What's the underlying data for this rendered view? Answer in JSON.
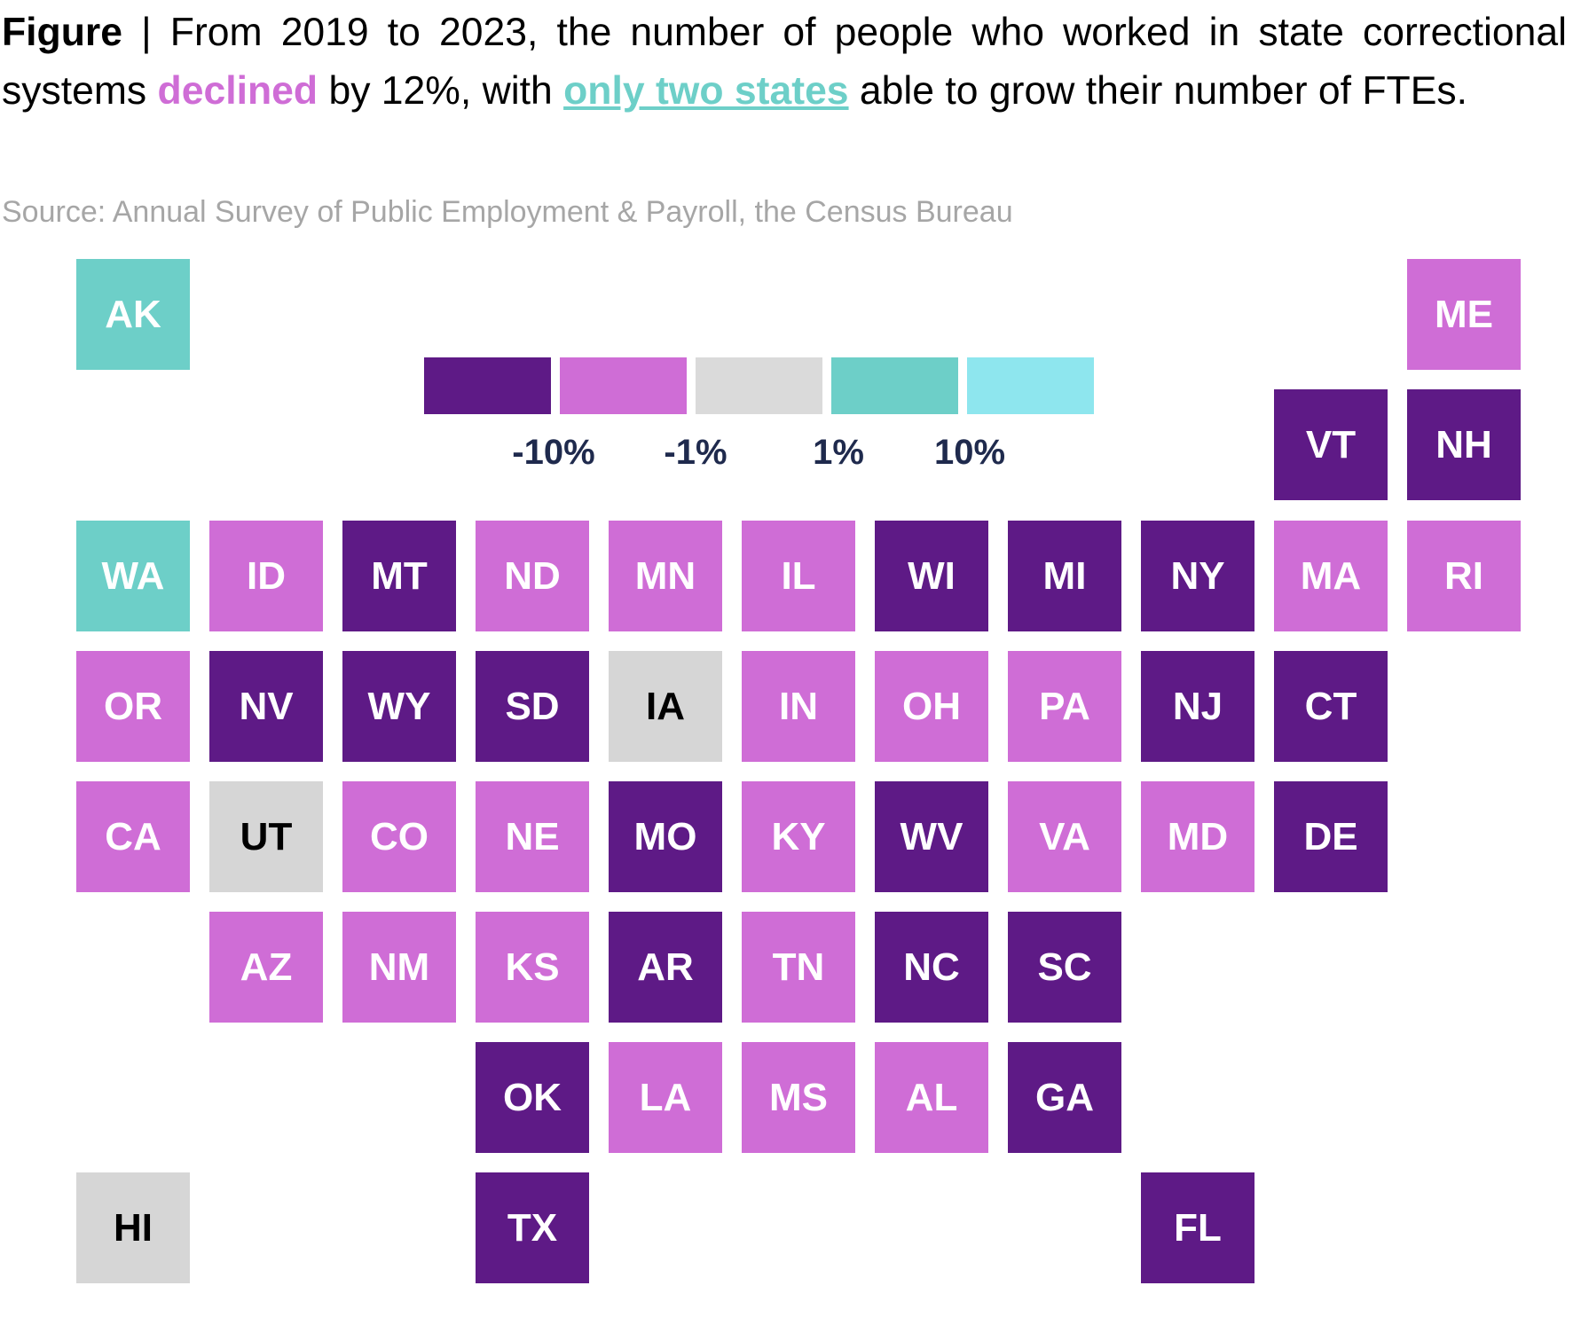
{
  "caption": {
    "label": "Figure",
    "separator": " | ",
    "part1": "From 2019 to 2023, the number of people who worked in state correctional systems ",
    "declined": "declined",
    "part2": " by 12%, with ",
    "grow": "only two states",
    "part3": " able to grow their number of FTEs.",
    "declined_color": "#cf6dd6",
    "grow_color": "#6dcfc8"
  },
  "source": "Source: Annual Survey of Public Employment & Payroll, the Census Bureau",
  "legend": {
    "bins": [
      {
        "color": "#5e1a86"
      },
      {
        "color": "#cf6dd6"
      },
      {
        "color": "#dadada"
      },
      {
        "color": "#6dcfc8"
      },
      {
        "color": "#8ee6ee"
      }
    ],
    "breaks": [
      "-10%",
      "-1%",
      "1%",
      "10%"
    ]
  },
  "colors": {
    "bin0": "#5e1a86",
    "bin1": "#cf6dd6",
    "bin2": "#d6d6d6",
    "bin3": "#6dcfc8",
    "light_text": "#ffffff",
    "dark_text": "#000000"
  },
  "map": {
    "type": "tile-grid-choropleth",
    "states": [
      {
        "abbr": "AK",
        "bin": 3,
        "row": 0,
        "col": 0
      },
      {
        "abbr": "ME",
        "bin": 1,
        "row": 0,
        "col": 10
      },
      {
        "abbr": "VT",
        "bin": 0,
        "row": 1,
        "col": 9
      },
      {
        "abbr": "NH",
        "bin": 0,
        "row": 1,
        "col": 10
      },
      {
        "abbr": "WA",
        "bin": 3,
        "row": 2,
        "col": 0
      },
      {
        "abbr": "ID",
        "bin": 1,
        "row": 2,
        "col": 1
      },
      {
        "abbr": "MT",
        "bin": 0,
        "row": 2,
        "col": 2
      },
      {
        "abbr": "ND",
        "bin": 1,
        "row": 2,
        "col": 3
      },
      {
        "abbr": "MN",
        "bin": 1,
        "row": 2,
        "col": 4
      },
      {
        "abbr": "IL",
        "bin": 1,
        "row": 2,
        "col": 5
      },
      {
        "abbr": "WI",
        "bin": 0,
        "row": 2,
        "col": 6
      },
      {
        "abbr": "MI",
        "bin": 0,
        "row": 2,
        "col": 7
      },
      {
        "abbr": "NY",
        "bin": 0,
        "row": 2,
        "col": 8
      },
      {
        "abbr": "MA",
        "bin": 1,
        "row": 2,
        "col": 9
      },
      {
        "abbr": "RI",
        "bin": 1,
        "row": 2,
        "col": 10
      },
      {
        "abbr": "OR",
        "bin": 1,
        "row": 3,
        "col": 0
      },
      {
        "abbr": "NV",
        "bin": 0,
        "row": 3,
        "col": 1
      },
      {
        "abbr": "WY",
        "bin": 0,
        "row": 3,
        "col": 2
      },
      {
        "abbr": "SD",
        "bin": 0,
        "row": 3,
        "col": 3
      },
      {
        "abbr": "IA",
        "bin": 2,
        "row": 3,
        "col": 4
      },
      {
        "abbr": "IN",
        "bin": 1,
        "row": 3,
        "col": 5
      },
      {
        "abbr": "OH",
        "bin": 1,
        "row": 3,
        "col": 6
      },
      {
        "abbr": "PA",
        "bin": 1,
        "row": 3,
        "col": 7
      },
      {
        "abbr": "NJ",
        "bin": 0,
        "row": 3,
        "col": 8
      },
      {
        "abbr": "CT",
        "bin": 0,
        "row": 3,
        "col": 9
      },
      {
        "abbr": "CA",
        "bin": 1,
        "row": 4,
        "col": 0
      },
      {
        "abbr": "UT",
        "bin": 2,
        "row": 4,
        "col": 1
      },
      {
        "abbr": "CO",
        "bin": 1,
        "row": 4,
        "col": 2
      },
      {
        "abbr": "NE",
        "bin": 1,
        "row": 4,
        "col": 3
      },
      {
        "abbr": "MO",
        "bin": 0,
        "row": 4,
        "col": 4
      },
      {
        "abbr": "KY",
        "bin": 1,
        "row": 4,
        "col": 5
      },
      {
        "abbr": "WV",
        "bin": 0,
        "row": 4,
        "col": 6
      },
      {
        "abbr": "VA",
        "bin": 1,
        "row": 4,
        "col": 7
      },
      {
        "abbr": "MD",
        "bin": 1,
        "row": 4,
        "col": 8
      },
      {
        "abbr": "DE",
        "bin": 0,
        "row": 4,
        "col": 9
      },
      {
        "abbr": "AZ",
        "bin": 1,
        "row": 5,
        "col": 1
      },
      {
        "abbr": "NM",
        "bin": 1,
        "row": 5,
        "col": 2
      },
      {
        "abbr": "KS",
        "bin": 1,
        "row": 5,
        "col": 3
      },
      {
        "abbr": "AR",
        "bin": 0,
        "row": 5,
        "col": 4
      },
      {
        "abbr": "TN",
        "bin": 1,
        "row": 5,
        "col": 5
      },
      {
        "abbr": "NC",
        "bin": 0,
        "row": 5,
        "col": 6
      },
      {
        "abbr": "SC",
        "bin": 0,
        "row": 5,
        "col": 7
      },
      {
        "abbr": "OK",
        "bin": 0,
        "row": 6,
        "col": 3
      },
      {
        "abbr": "LA",
        "bin": 1,
        "row": 6,
        "col": 4
      },
      {
        "abbr": "MS",
        "bin": 1,
        "row": 6,
        "col": 5
      },
      {
        "abbr": "AL",
        "bin": 1,
        "row": 6,
        "col": 6
      },
      {
        "abbr": "GA",
        "bin": 0,
        "row": 6,
        "col": 7
      },
      {
        "abbr": "HI",
        "bin": 2,
        "row": 7,
        "col": 0
      },
      {
        "abbr": "TX",
        "bin": 0,
        "row": 7,
        "col": 3
      },
      {
        "abbr": "FL",
        "bin": 0,
        "row": 7,
        "col": 8
      }
    ]
  }
}
